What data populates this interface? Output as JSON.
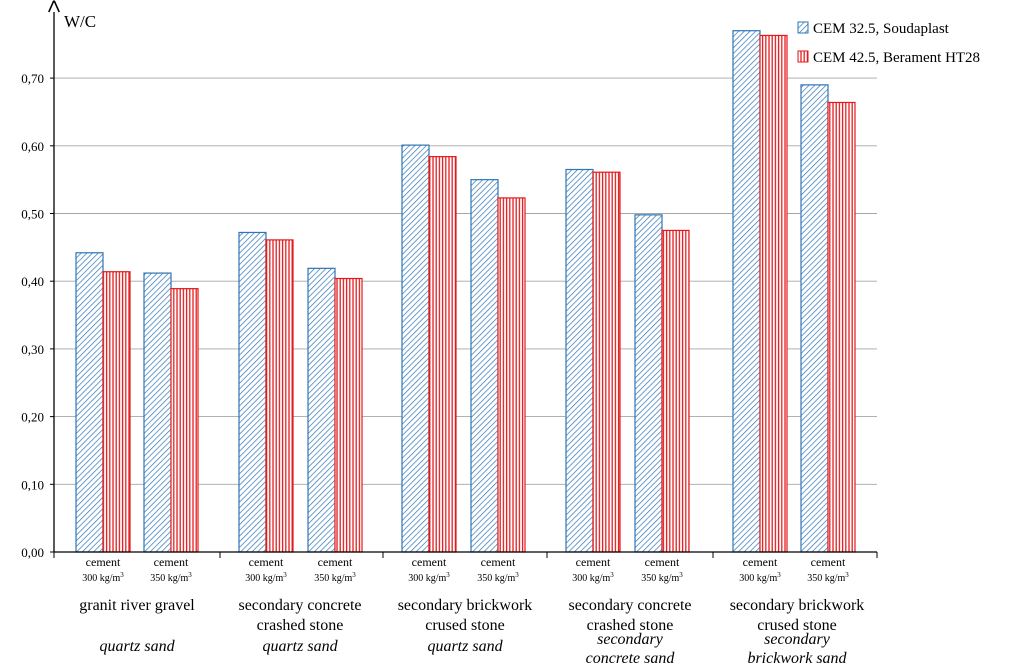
{
  "chart_data": {
    "type": "bar",
    "ylabel": "W/C",
    "ylim": [
      0,
      0.77
    ],
    "yticks": [
      "0,00",
      "0,10",
      "0,20",
      "0,30",
      "0,40",
      "0,50",
      "0,60",
      "0,70"
    ],
    "grid": true,
    "legend_position": "top-right",
    "series": [
      {
        "name": "CEM 32.5, Soudaplast",
        "color": "#2e75b6",
        "values": [
          0.442,
          0.412,
          0.472,
          0.419,
          0.601,
          0.55,
          0.565,
          0.498,
          0.77,
          0.69
        ]
      },
      {
        "name": "CEM 42.5, Berament HT28",
        "color": "#e31a1c",
        "values": [
          0.414,
          0.389,
          0.461,
          0.404,
          0.584,
          0.523,
          0.561,
          0.475,
          0.763,
          0.664
        ]
      }
    ],
    "categories": [
      {
        "line1": "cement",
        "line2": "300 kg/m",
        "sup": "3"
      },
      {
        "line1": "cement",
        "line2": "350 kg/m",
        "sup": "3"
      },
      {
        "line1": "cement",
        "line2": "300 kg/m",
        "sup": "3"
      },
      {
        "line1": "cement",
        "line2": "350 kg/m",
        "sup": "3"
      },
      {
        "line1": "cement",
        "line2": "300 kg/m",
        "sup": "3"
      },
      {
        "line1": "cement",
        "line2": "350 kg/m",
        "sup": "3"
      },
      {
        "line1": "cement",
        "line2": "300 kg/m",
        "sup": "3"
      },
      {
        "line1": "cement",
        "line2": "350 kg/m",
        "sup": "3"
      },
      {
        "line1": "cement",
        "line2": "300 kg/m",
        "sup": "3"
      },
      {
        "line1": "cement",
        "line2": "350 kg/m",
        "sup": "3"
      }
    ],
    "groups": [
      {
        "aggregate": [
          "granit river gravel"
        ],
        "sand": [
          "quartz sand"
        ]
      },
      {
        "aggregate": [
          "secondary  concrete",
          "crashed stone"
        ],
        "sand": [
          "quartz sand"
        ]
      },
      {
        "aggregate": [
          "secondary brickwork",
          "crused stone"
        ],
        "sand": [
          "quartz sand"
        ]
      },
      {
        "aggregate": [
          "secondary  concrete",
          "crashed stone"
        ],
        "sand": [
          "secondary",
          "concrete sand"
        ]
      },
      {
        "aggregate": [
          "secondary brickwork",
          "crused stone"
        ],
        "sand": [
          "secondary",
          "brickwork sand"
        ]
      }
    ]
  }
}
